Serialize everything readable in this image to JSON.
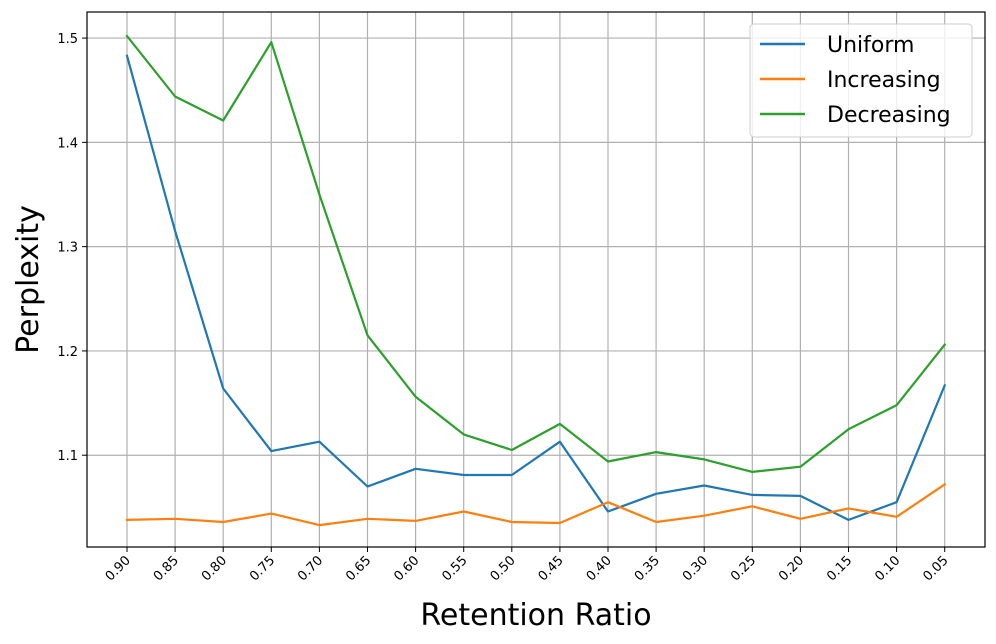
{
  "chart_data": {
    "type": "line",
    "title": "",
    "xlabel": "Retention Ratio",
    "ylabel": "Perplexity",
    "categories": [
      "0.90",
      "0.85",
      "0.80",
      "0.75",
      "0.70",
      "0.65",
      "0.60",
      "0.55",
      "0.50",
      "0.45",
      "0.40",
      "0.35",
      "0.30",
      "0.25",
      "0.20",
      "0.15",
      "0.10",
      "0.05"
    ],
    "yticks": [
      "1.1",
      "1.2",
      "1.3",
      "1.4",
      "1.5"
    ],
    "ylim": [
      1.012,
      1.525
    ],
    "grid": true,
    "legend_position": "top-right",
    "series": [
      {
        "name": "Uniform",
        "color": "#1f77b4",
        "values": [
          1.483,
          1.315,
          1.164,
          1.104,
          1.113,
          1.07,
          1.087,
          1.081,
          1.081,
          1.113,
          1.046,
          1.063,
          1.071,
          1.062,
          1.061,
          1.038,
          1.055,
          1.167
        ]
      },
      {
        "name": "Increasing",
        "color": "#ff7f0e",
        "values": [
          1.038,
          1.039,
          1.036,
          1.044,
          1.033,
          1.039,
          1.037,
          1.046,
          1.036,
          1.035,
          1.055,
          1.036,
          1.042,
          1.051,
          1.039,
          1.049,
          1.041,
          1.072
        ]
      },
      {
        "name": "Decreasing",
        "color": "#2ca02c",
        "values": [
          1.502,
          1.444,
          1.421,
          1.496,
          1.35,
          1.215,
          1.156,
          1.12,
          1.105,
          1.13,
          1.094,
          1.103,
          1.096,
          1.084,
          1.089,
          1.125,
          1.148,
          1.206
        ]
      }
    ]
  }
}
